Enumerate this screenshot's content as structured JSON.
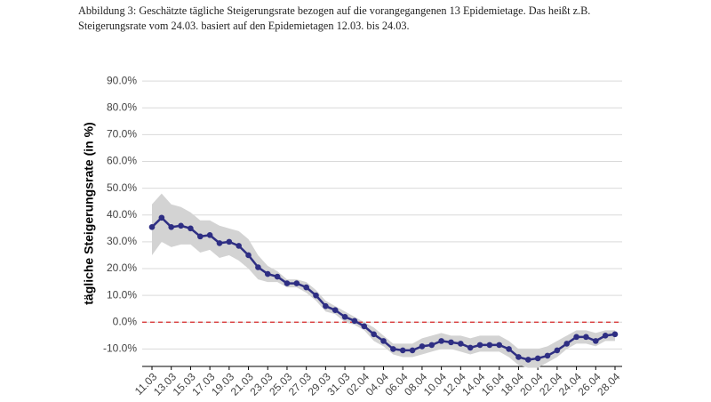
{
  "chart_data": {
    "type": "line",
    "title": "Abbildung 3: Geschätzte tägliche Steigerungsrate bezogen auf die vorangegangenen 13 Epidemietage. Das heißt z.B. Steigerungsrate vom 24.03. basiert auf den Epidemietagen 12.03. bis 24.03.",
    "y_label": "tägliche Steigerungsrate (in %)",
    "categories": [
      "11.03",
      null,
      "13.03",
      null,
      "15.03",
      null,
      "17.03",
      null,
      "19.03",
      null,
      "21.03",
      null,
      "23.03",
      null,
      "25.03",
      null,
      "27.03",
      null,
      "29.03",
      null,
      "31.03",
      null,
      "02.04",
      null,
      "04.04",
      null,
      "06.04",
      null,
      "08.04",
      null,
      "10.04",
      null,
      "12.04",
      null,
      "14.04",
      null,
      "16.04",
      null,
      "18.04",
      null,
      "20.04",
      null,
      "22.04",
      null,
      "24.04",
      null,
      "26.04",
      null,
      "28.04"
    ],
    "series": [
      {
        "color": "#2e2e83",
        "band_color": "#d3d3d3",
        "values": [
          35.5,
          39,
          35.5,
          36,
          35,
          32,
          32.5,
          29.5,
          30,
          28.5,
          25,
          20.5,
          18,
          17,
          14.5,
          14.5,
          13,
          10,
          6,
          4.5,
          2,
          0.5,
          -1.5,
          -4.5,
          -7,
          -10,
          -10.5,
          -10.5,
          -9,
          -8.5,
          -7,
          -7.5,
          -8,
          -9.5,
          -8.5,
          -8.5,
          -8.5,
          -10,
          -13,
          -14,
          -13.5,
          -12.5,
          -10.5,
          -8,
          -5.5,
          -5.5,
          -7,
          -5,
          -4.5
        ],
        "upper": [
          44,
          48,
          44,
          43,
          41,
          38,
          38,
          36,
          35,
          34,
          31,
          25,
          21,
          19,
          16,
          16,
          15,
          12,
          8,
          6,
          4,
          2,
          0,
          -2,
          -5,
          -8,
          -8,
          -8,
          -6,
          -5,
          -4,
          -5,
          -5,
          -6,
          -5,
          -5,
          -5,
          -7,
          -10,
          -10,
          -10,
          -9,
          -7,
          -5,
          -3,
          -3,
          -4,
          -3,
          -3
        ],
        "lower": [
          25,
          30,
          28,
          29,
          29,
          26,
          27,
          24,
          25,
          23,
          20,
          16,
          15,
          15,
          13,
          13,
          11,
          8,
          4,
          3,
          0,
          -1,
          -3,
          -7,
          -9,
          -12,
          -13,
          -13,
          -12,
          -11,
          -10,
          -10,
          -11,
          -12,
          -11,
          -11,
          -11,
          -13,
          -16,
          -17,
          -17,
          -15,
          -13,
          -10,
          -8,
          -8,
          -9,
          -7,
          -7
        ]
      }
    ],
    "ylim": [
      -16.5,
      97
    ],
    "yticks": [
      {
        "value": -10,
        "label": "-10.0%"
      },
      {
        "value": 0,
        "label": "0.0%"
      },
      {
        "value": 10,
        "label": "10.0%"
      },
      {
        "value": 20,
        "label": "20.0%"
      },
      {
        "value": 30,
        "label": "30.0%"
      },
      {
        "value": 40,
        "label": "40.0%"
      },
      {
        "value": 50,
        "label": "50.0%"
      },
      {
        "value": 60,
        "label": "60.0%"
      },
      {
        "value": 70,
        "label": "70.0%"
      },
      {
        "value": 80,
        "label": "80.0%"
      },
      {
        "value": 90,
        "label": "90.0%"
      }
    ],
    "grid": true,
    "reference_line": {
      "value": 0,
      "color": "#d62728"
    }
  }
}
